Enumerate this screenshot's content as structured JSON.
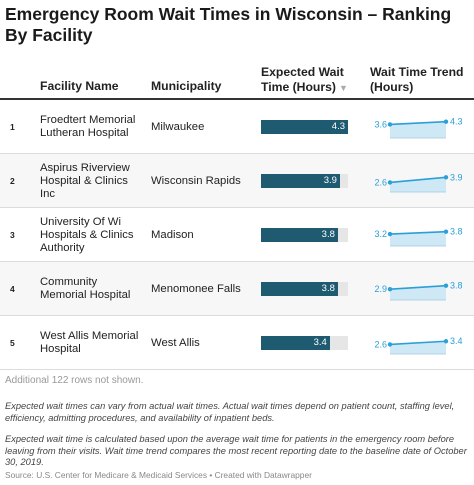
{
  "title": "Emergency Room Wait Times in Wisconsin – Ranking By Facility",
  "columns": {
    "facility": "Facility Name",
    "municipality": "Municipality",
    "expected": "Expected Wait Time (Hours)",
    "sort_icon": "sort-descending-icon",
    "trend": "Wait Time Trend (Hours)"
  },
  "colors": {
    "bar": "#1e5a70",
    "bar_track": "#e6e6e6",
    "spark_line": "#2a9fd8",
    "spark_fill": "#cfe8f5"
  },
  "chart_data": {
    "type": "table",
    "bar_max": 4.3,
    "rows": [
      {
        "rank": "1",
        "facility": "Froedtert Memorial Lutheran Hospital",
        "municipality": "Milwaukee",
        "expected": 4.3,
        "trend_start": 3.6,
        "trend_end": 4.3
      },
      {
        "rank": "2",
        "facility": "Aspirus Riverview Hospital & Clinics Inc",
        "municipality": "Wisconsin Rapids",
        "expected": 3.9,
        "trend_start": 2.6,
        "trend_end": 3.9
      },
      {
        "rank": "3",
        "facility": "University Of Wi Hospitals & Clinics Authority",
        "municipality": "Madison",
        "expected": 3.8,
        "trend_start": 3.2,
        "trend_end": 3.8
      },
      {
        "rank": "4",
        "facility": "Community Memorial Hospital",
        "municipality": "Menomonee Falls",
        "expected": 3.8,
        "trend_start": 2.9,
        "trend_end": 3.8
      },
      {
        "rank": "5",
        "facility": "West Allis Memorial Hospital",
        "municipality": "West Allis",
        "expected": 3.4,
        "trend_start": 2.6,
        "trend_end": 3.4
      }
    ]
  },
  "notes": {
    "more_rows": "Additional 122 rows not shown.",
    "note1": "Expected wait times can vary from actual wait times. Actual wait times depend on patient count, staffing level, efficiency, admitting procedures, and availability of inpatient beds.",
    "note2": "Expected wait time is calculated based upon the average wait time for patients in the emergency room before leaving from their visits. Wait time trend compares the most recent reporting date to the baseline date of October 30, 2019.",
    "source": "Source: U.S. Center for Medicare & Medicaid Services • Created with Datawrapper"
  }
}
